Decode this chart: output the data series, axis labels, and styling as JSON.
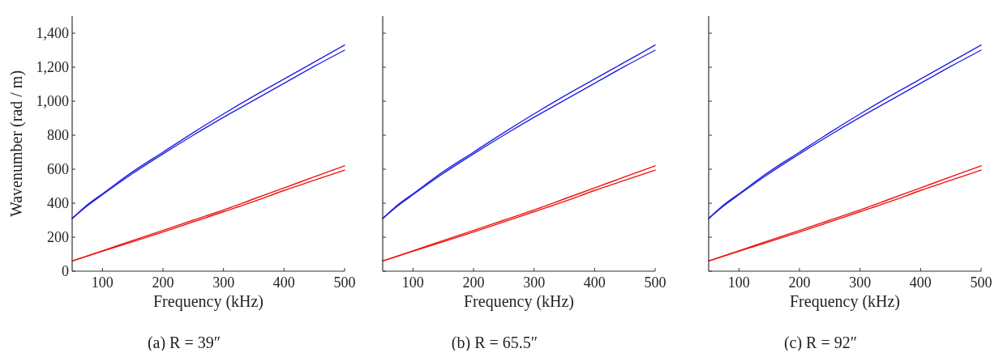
{
  "chart_data": [
    {
      "type": "line",
      "title": "(a) R = 39″",
      "xlabel": "Frequency (kHz)",
      "ylabel": "Wavenumber (rad / m)",
      "xlim": [
        50,
        500
      ],
      "ylim": [
        0,
        1500
      ],
      "xticks": [
        100,
        200,
        300,
        400,
        500
      ],
      "yticks": [
        0,
        200,
        400,
        600,
        800,
        {
          "value": 1000,
          "label": "1,000"
        },
        {
          "value": 1200,
          "label": "1,200"
        },
        {
          "value": 1400,
          "label": "1,400"
        }
      ],
      "grid": false,
      "series": [
        {
          "color": "#2020e0",
          "x": [
            50,
            75,
            100,
            150,
            200,
            250,
            300,
            350,
            400,
            450,
            500
          ],
          "values": [
            310,
            390,
            455,
            585,
            700,
            815,
            925,
            1030,
            1130,
            1230,
            1330
          ]
        },
        {
          "color": "#2020e0",
          "x": [
            50,
            75,
            100,
            150,
            200,
            250,
            300,
            350,
            400,
            450,
            500
          ],
          "values": [
            310,
            385,
            450,
            575,
            690,
            800,
            905,
            1005,
            1105,
            1205,
            1300
          ]
        },
        {
          "color": "#f01010",
          "x": [
            50,
            100,
            150,
            200,
            250,
            300,
            350,
            400,
            450,
            500
          ],
          "values": [
            60,
            120,
            180,
            240,
            300,
            360,
            425,
            490,
            555,
            620
          ]
        },
        {
          "color": "#f01010",
          "x": [
            50,
            100,
            150,
            200,
            250,
            300,
            350,
            400,
            450,
            500
          ],
          "values": [
            60,
            118,
            173,
            230,
            290,
            350,
            410,
            475,
            535,
            595
          ]
        }
      ]
    },
    {
      "type": "line",
      "title": "(b) R = 65.5″",
      "xlabel": "Frequency (kHz)",
      "xlim": [
        50,
        500
      ],
      "ylim": [
        0,
        1500
      ],
      "xticks": [
        100,
        200,
        300,
        400,
        500
      ],
      "yticks": [
        0,
        200,
        400,
        600,
        800,
        1000,
        1200,
        1400
      ],
      "tick_labels": "x",
      "grid": false,
      "series": [
        {
          "color": "#2020e0",
          "x": [
            50,
            75,
            100,
            150,
            200,
            250,
            300,
            350,
            400,
            450,
            500
          ],
          "values": [
            310,
            390,
            455,
            585,
            700,
            815,
            925,
            1030,
            1130,
            1230,
            1330
          ]
        },
        {
          "color": "#2020e0",
          "x": [
            50,
            75,
            100,
            150,
            200,
            250,
            300,
            350,
            400,
            450,
            500
          ],
          "values": [
            310,
            385,
            450,
            575,
            690,
            800,
            905,
            1005,
            1105,
            1205,
            1300
          ]
        },
        {
          "color": "#f01010",
          "x": [
            50,
            100,
            150,
            200,
            250,
            300,
            350,
            400,
            450,
            500
          ],
          "values": [
            60,
            120,
            180,
            240,
            300,
            360,
            425,
            490,
            555,
            620
          ]
        },
        {
          "color": "#f01010",
          "x": [
            50,
            100,
            150,
            200,
            250,
            300,
            350,
            400,
            450,
            500
          ],
          "values": [
            60,
            118,
            173,
            230,
            290,
            350,
            410,
            475,
            535,
            595
          ]
        }
      ]
    },
    {
      "type": "line",
      "title": "(c) R = 92″",
      "xlabel": "Frequency (kHz)",
      "xlim": [
        50,
        500
      ],
      "ylim": [
        0,
        1500
      ],
      "xticks": [
        100,
        200,
        300,
        400,
        500
      ],
      "yticks": [
        0,
        200,
        400,
        600,
        800,
        1000,
        1200,
        1400
      ],
      "tick_labels": "x",
      "grid": false,
      "series": [
        {
          "color": "#2020e0",
          "x": [
            50,
            75,
            100,
            150,
            200,
            250,
            300,
            350,
            400,
            450,
            500
          ],
          "values": [
            310,
            390,
            455,
            585,
            700,
            815,
            925,
            1030,
            1130,
            1230,
            1330
          ]
        },
        {
          "color": "#2020e0",
          "x": [
            50,
            75,
            100,
            150,
            200,
            250,
            300,
            350,
            400,
            450,
            500
          ],
          "values": [
            310,
            385,
            450,
            575,
            690,
            800,
            905,
            1005,
            1105,
            1205,
            1300
          ]
        },
        {
          "color": "#f01010",
          "x": [
            50,
            100,
            150,
            200,
            250,
            300,
            350,
            400,
            450,
            500
          ],
          "values": [
            60,
            120,
            180,
            240,
            300,
            360,
            425,
            490,
            555,
            620
          ]
        },
        {
          "color": "#f01010",
          "x": [
            50,
            100,
            150,
            200,
            250,
            300,
            350,
            400,
            450,
            500
          ],
          "values": [
            60,
            118,
            173,
            230,
            290,
            350,
            410,
            475,
            535,
            595
          ]
        }
      ]
    }
  ]
}
